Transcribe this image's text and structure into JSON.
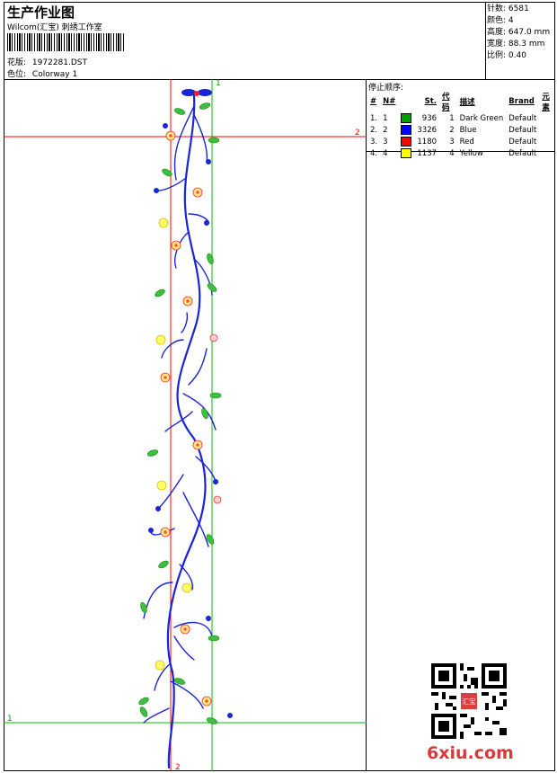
{
  "header": {
    "title": "生产作业图",
    "studio": "Wilcom(汇宝) 刺绣工作室",
    "design_file_label": "花版:",
    "design_file": "1972281.DST",
    "colorway_label": "色位:",
    "colorway": "Colorway 1"
  },
  "stats": {
    "stitches_label": "针数:",
    "stitches": "6581",
    "colors_label": "颜色:",
    "colors": "4",
    "height_label": "高度:",
    "height": "647.0 mm",
    "width_label": "宽度:",
    "width": "88.3 mm",
    "scale_label": "比例:",
    "scale": "0.40"
  },
  "stop_sequence": {
    "title": "停止顺序:",
    "headers": [
      "#",
      "N#",
      "St.",
      "代码",
      "描述",
      "Brand",
      "元素"
    ],
    "rows": [
      {
        "num": "1.",
        "n": "1",
        "color": "#00a000",
        "stitches": "936",
        "code": "1",
        "description": "Dark Green",
        "brand": "Default"
      },
      {
        "num": "2.",
        "n": "2",
        "color": "#0000ff",
        "stitches": "3326",
        "code": "2",
        "description": "Blue",
        "brand": "Default"
      },
      {
        "num": "3.",
        "n": "3",
        "color": "#ff0000",
        "stitches": "1180",
        "code": "3",
        "description": "Red",
        "brand": "Default"
      },
      {
        "num": "4.",
        "n": "4",
        "color": "#ffff00",
        "stitches": "1137",
        "code": "4",
        "description": "Yellow",
        "brand": "Default"
      }
    ]
  },
  "guides": {
    "red_label_1": "2",
    "red_label_2": "2",
    "green_label_1": "1",
    "green_label_2": "1",
    "red_color": "#ff0000",
    "green_color": "#00c000"
  },
  "watermark": "6xiu.com",
  "seal_text": "汇宝"
}
